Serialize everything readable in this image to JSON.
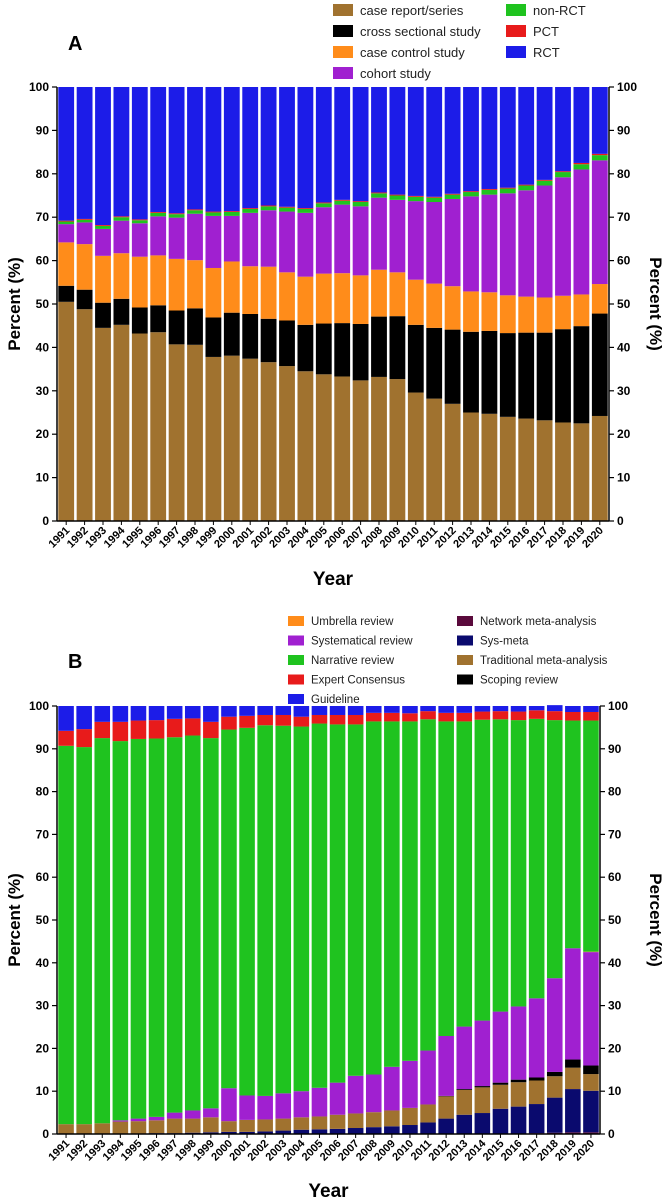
{
  "chart_data": [
    {
      "type": "bar",
      "panel": "A",
      "stacked": true,
      "ylabel_left": "Percent (%)",
      "ylabel_right": "Percent (%)",
      "xlabel": "Year",
      "ylim": [
        0,
        100
      ],
      "yticks": [
        0,
        10,
        20,
        30,
        40,
        50,
        60,
        70,
        80,
        90,
        100
      ],
      "categories": [
        "1991",
        "1992",
        "1993",
        "1994",
        "1995",
        "1996",
        "1997",
        "1998",
        "1999",
        "2000",
        "2001",
        "2002",
        "2003",
        "2004",
        "2005",
        "2006",
        "2007",
        "2008",
        "2009",
        "2010",
        "2011",
        "2012",
        "2013",
        "2014",
        "2015",
        "2016",
        "2017",
        "2018",
        "2019",
        "2020"
      ],
      "legend_position": "top",
      "legend": [
        {
          "name": "case report/series",
          "color": "#A0722F"
        },
        {
          "name": "cross sectional study",
          "color": "#000000"
        },
        {
          "name": "case control study",
          "color": "#FF8C1A"
        },
        {
          "name": "cohort study",
          "color": "#A020D0"
        },
        {
          "name": "non-RCT",
          "color": "#1FC31F"
        },
        {
          "name": "PCT",
          "color": "#E81B1B"
        },
        {
          "name": "RCT",
          "color": "#1C1CE8"
        }
      ],
      "series": [
        {
          "name": "case report/series",
          "color": "#A0722F",
          "values": [
            50.5,
            48.8,
            44.5,
            45.2,
            43.2,
            43.5,
            40.7,
            40.6,
            37.8,
            38.1,
            37.4,
            36.6,
            35.7,
            34.5,
            33.8,
            33.3,
            32.4,
            33.2,
            32.7,
            29.6,
            28.2,
            27,
            25,
            24.7,
            24,
            23.6,
            23.2,
            22.7,
            22.5,
            24.2
          ]
        },
        {
          "name": "cross sectional study",
          "color": "#000000",
          "values": [
            3.7,
            4.5,
            5.8,
            6,
            6,
            6.2,
            7.8,
            8.4,
            9.1,
            9.9,
            10.3,
            10,
            10.5,
            10.7,
            11.7,
            12.3,
            13,
            13.9,
            14.5,
            15.6,
            16.3,
            17.1,
            18.6,
            19.1,
            19.3,
            19.8,
            20.2,
            21.5,
            22.4,
            23.6
          ]
        },
        {
          "name": "case control study",
          "color": "#FF8C1A",
          "values": [
            10,
            10.5,
            10.8,
            10.5,
            11.7,
            11.5,
            11.9,
            11.1,
            11.4,
            11.8,
            11,
            12,
            11.1,
            11.1,
            11.5,
            11.5,
            11.2,
            10.8,
            10.1,
            10.4,
            10.2,
            10,
            9.3,
            8.9,
            8.7,
            8.3,
            8.1,
            7.7,
            7.3,
            6.8
          ]
        },
        {
          "name": "cohort study",
          "color": "#A020D0",
          "values": [
            4.2,
            5,
            6.2,
            7.5,
            7.7,
            9,
            9.5,
            10.7,
            12,
            10.5,
            12.3,
            13,
            14,
            14.7,
            15.3,
            15.8,
            15.9,
            16.6,
            16.7,
            18.1,
            18.8,
            20.1,
            21.9,
            22.5,
            23.5,
            24.5,
            25.8,
            27.3,
            28.8,
            28.5
          ]
        },
        {
          "name": "non-RCT",
          "color": "#1FC31F",
          "values": [
            0.6,
            0.6,
            0.7,
            0.8,
            0.7,
            0.8,
            0.8,
            0.8,
            0.8,
            0.9,
            0.9,
            0.9,
            0.9,
            0.9,
            0.9,
            0.9,
            1,
            1,
            1,
            1,
            1,
            1,
            1,
            1.1,
            1.1,
            1.1,
            1.1,
            1.2,
            1.2,
            1.2
          ]
        },
        {
          "name": "PCT",
          "color": "#E81B1B",
          "values": [
            0.2,
            0.2,
            0.2,
            0.2,
            0.2,
            0.2,
            0.2,
            0.2,
            0.2,
            0.2,
            0.2,
            0.2,
            0.2,
            0.2,
            0.2,
            0.2,
            0.2,
            0.2,
            0.2,
            0.2,
            0.2,
            0.2,
            0.2,
            0.2,
            0.2,
            0.2,
            0.2,
            0.2,
            0.3,
            0.3
          ]
        },
        {
          "name": "RCT",
          "color": "#1C1CE8",
          "values": [
            30.8,
            30.4,
            31.8,
            29.8,
            30.5,
            28.8,
            29.1,
            28.2,
            28.7,
            28.6,
            27.9,
            27.3,
            27.6,
            27.9,
            26.6,
            26,
            26.3,
            24.3,
            24.8,
            25.1,
            25.3,
            24.6,
            24,
            23.5,
            23.2,
            22.5,
            21.4,
            19.4,
            17.5,
            15.4
          ]
        }
      ]
    },
    {
      "type": "bar",
      "panel": "B",
      "stacked": true,
      "ylabel_left": "Percent (%)",
      "ylabel_right": "Percent (%)",
      "xlabel": "Year",
      "ylim": [
        0,
        100
      ],
      "yticks": [
        0,
        10,
        20,
        30,
        40,
        50,
        60,
        70,
        80,
        90,
        100
      ],
      "categories": [
        "1991",
        "1992",
        "1993",
        "1994",
        "1995",
        "1996",
        "1997",
        "1998",
        "1999",
        "2000",
        "2001",
        "2002",
        "2003",
        "2004",
        "2005",
        "2006",
        "2007",
        "2008",
        "2009",
        "2010",
        "2011",
        "2012",
        "2013",
        "2014",
        "2015",
        "2016",
        "2017",
        "2018",
        "2019",
        "2020"
      ],
      "legend_position": "top",
      "legend": [
        {
          "name": "Umbrella review",
          "color": "#FF8C1A"
        },
        {
          "name": "Systematical review",
          "color": "#A020D0"
        },
        {
          "name": "Narrative review",
          "color": "#1FC31F"
        },
        {
          "name": "Expert Consensus",
          "color": "#E81B1B"
        },
        {
          "name": "Guideline",
          "color": "#1C1CE8"
        },
        {
          "name": "Network meta-analysis",
          "color": "#5A0A3C"
        },
        {
          "name": "Sys-meta",
          "color": "#0A0A6E"
        },
        {
          "name": "Traditional meta-analysis",
          "color": "#A0722F"
        },
        {
          "name": "Scoping review",
          "color": "#000000"
        }
      ],
      "series": [
        {
          "name": "Network meta-analysis",
          "color": "#5A0A3C",
          "values": [
            0,
            0,
            0,
            0,
            0,
            0,
            0,
            0,
            0,
            0,
            0,
            0,
            0,
            0,
            0,
            0,
            0,
            0,
            0,
            0,
            0,
            0,
            0,
            0,
            0.1,
            0.1,
            0.2,
            0.3,
            0.4,
            0.4
          ]
        },
        {
          "name": "Sys-meta",
          "color": "#0A0A6E",
          "values": [
            0,
            0,
            0,
            0,
            0.1,
            0.2,
            0.2,
            0.3,
            0.4,
            0.5,
            0.5,
            0.6,
            0.8,
            1,
            1.1,
            1.2,
            1.4,
            1.6,
            1.8,
            2.1,
            2.7,
            3.6,
            4.5,
            4.9,
            5.8,
            6.3,
            6.8,
            8.2,
            10.1,
            9.7
          ]
        },
        {
          "name": "Traditional meta-analysis",
          "color": "#A0722F",
          "values": [
            2.3,
            2.3,
            2.5,
            2.9,
            2.9,
            3,
            3.4,
            3.3,
            3.5,
            2.5,
            2.8,
            2.8,
            2.8,
            2.9,
            3,
            3.3,
            3.4,
            3.5,
            3.7,
            4,
            4.2,
            5.2,
            5.8,
            6,
            5.6,
            5.7,
            5.5,
            5,
            5,
            3.9
          ]
        },
        {
          "name": "Scoping review",
          "color": "#000000",
          "values": [
            0,
            0,
            0,
            0,
            0,
            0,
            0,
            0,
            0,
            0,
            0,
            0,
            0,
            0,
            0,
            0,
            0,
            0,
            0,
            0,
            0,
            0.1,
            0.2,
            0.3,
            0.5,
            0.6,
            0.7,
            1,
            1.9,
            2
          ]
        },
        {
          "name": "Systematical review",
          "color": "#A020D0",
          "values": [
            0,
            0,
            0,
            0.3,
            0.6,
            0.8,
            1.4,
            1.9,
            2.1,
            7.7,
            5.7,
            5.5,
            5.9,
            6.1,
            6.7,
            7.5,
            8.8,
            8.8,
            10.2,
            11,
            12.6,
            14,
            14.6,
            15.3,
            16.6,
            17.1,
            18.5,
            21.9,
            26,
            26.5
          ]
        },
        {
          "name": "Umbrella review",
          "color": "#FF8C1A",
          "values": [
            0,
            0,
            0,
            0,
            0,
            0,
            0,
            0,
            0,
            0,
            0,
            0,
            0,
            0,
            0,
            0,
            0,
            0,
            0,
            0,
            0,
            0,
            0,
            0,
            0,
            0,
            0,
            0,
            0,
            0.1
          ]
        },
        {
          "name": "Narrative review",
          "color": "#1FC31F",
          "values": [
            88.4,
            88.1,
            90,
            88.6,
            88.7,
            88.4,
            87.7,
            87.6,
            86.5,
            83.8,
            85.9,
            86.6,
            85.9,
            85.2,
            85.1,
            83.7,
            82.1,
            82.5,
            80.7,
            79.3,
            77.4,
            73.5,
            71.3,
            70.3,
            68.3,
            66.9,
            65.3,
            60.3,
            53.2,
            54
          ]
        },
        {
          "name": "Expert Consensus",
          "color": "#E81B1B",
          "values": [
            3.5,
            4.2,
            3.8,
            4.5,
            4.3,
            4.3,
            4.3,
            4,
            3.8,
            3,
            2.8,
            2.4,
            2.5,
            2.3,
            2,
            2.2,
            2.2,
            2,
            2,
            1.9,
            1.9,
            2,
            2,
            1.9,
            1.9,
            2,
            2,
            2.1,
            2,
            2
          ]
        },
        {
          "name": "Guideline",
          "color": "#1C1CE8",
          "values": [
            5.8,
            5.4,
            3.7,
            3.7,
            3.4,
            3.3,
            3,
            2.9,
            3.7,
            2.5,
            2.3,
            2.1,
            2.1,
            2.5,
            2.1,
            2.1,
            2.1,
            1.6,
            1.6,
            1.7,
            1.2,
            1.6,
            1.6,
            1.3,
            1.2,
            1.3,
            1,
            1.4,
            1.4,
            1.4
          ]
        }
      ]
    }
  ]
}
